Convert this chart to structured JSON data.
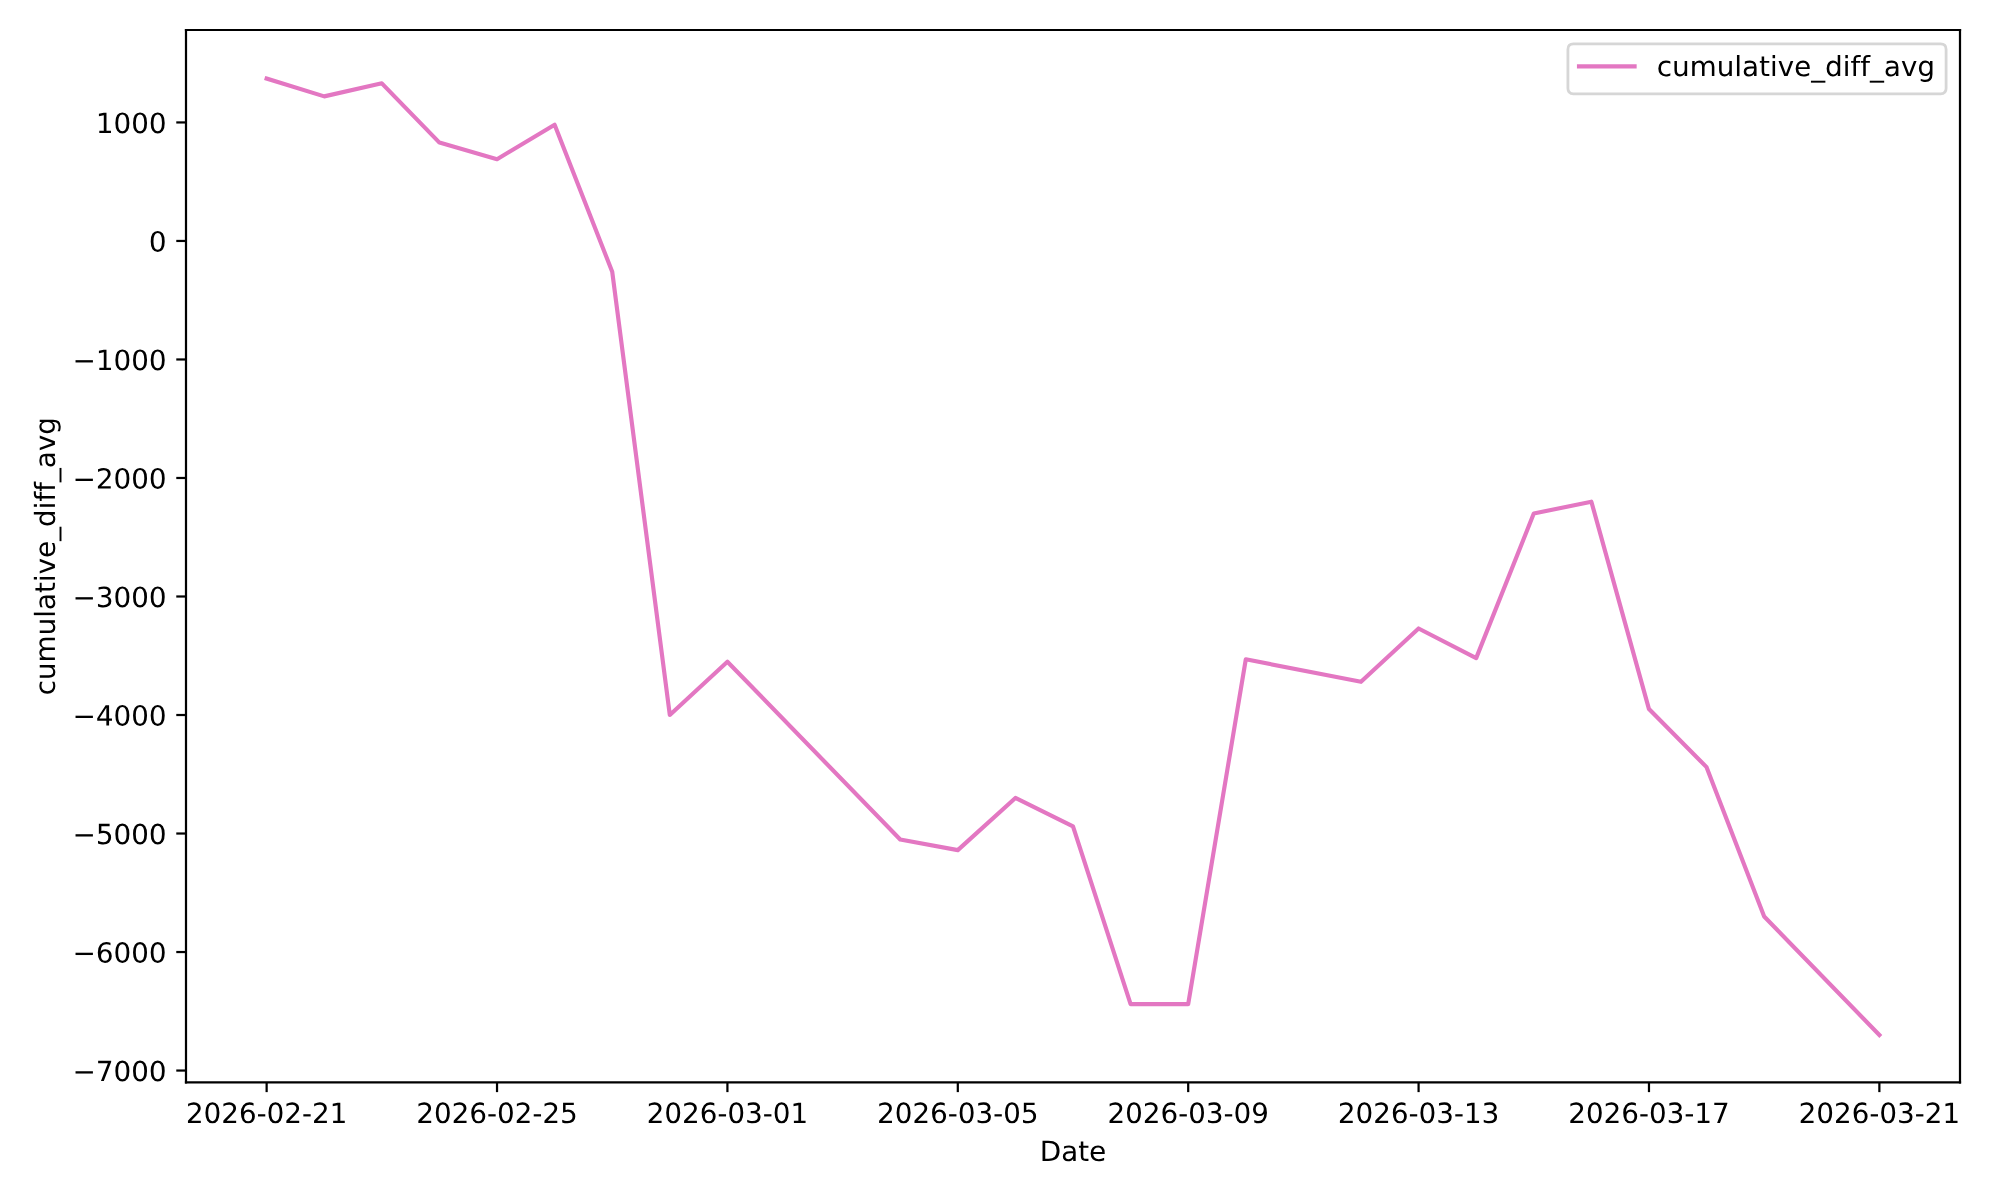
{
  "chart_data": {
    "type": "line",
    "xlabel": "Date",
    "ylabel": "cumulative_diff_avg",
    "series": [
      {
        "name": "cumulative_diff_avg",
        "color": "#e377c2",
        "x": [
          "2026-02-21",
          "2026-02-22",
          "2026-02-23",
          "2026-02-24",
          "2026-02-25",
          "2026-02-26",
          "2026-02-27",
          "2026-02-28",
          "2026-03-01",
          "2026-03-04",
          "2026-03-05",
          "2026-03-06",
          "2026-03-07",
          "2026-03-08",
          "2026-03-09",
          "2026-03-10",
          "2026-03-12",
          "2026-03-13",
          "2026-03-14",
          "2026-03-15",
          "2026-03-16",
          "2026-03-17",
          "2026-03-18",
          "2026-03-19",
          "2026-03-21"
        ],
        "values": [
          1370,
          1220,
          1330,
          830,
          690,
          980,
          -260,
          -4000,
          -3550,
          -5050,
          -5140,
          -4700,
          -4940,
          -6440,
          -6440,
          -3530,
          -3720,
          -3270,
          -3520,
          -2300,
          -2200,
          -3950,
          -4440,
          -5700,
          -6700
        ]
      }
    ],
    "xlim": [
      "2026-02-19T14:24",
      "2026-03-22T09:36"
    ],
    "xticks": [
      "2026-02-21",
      "2026-02-25",
      "2026-03-01",
      "2026-03-05",
      "2026-03-09",
      "2026-03-13",
      "2026-03-17",
      "2026-03-21"
    ],
    "ylim": [
      -7100,
      1780
    ],
    "yticks": [
      {
        "value": -7000,
        "label": "−7000"
      },
      {
        "value": -6000,
        "label": "−6000"
      },
      {
        "value": -5000,
        "label": "−5000"
      },
      {
        "value": -4000,
        "label": "−4000"
      },
      {
        "value": -3000,
        "label": "−3000"
      },
      {
        "value": -2000,
        "label": "−2000"
      },
      {
        "value": -1000,
        "label": "−1000"
      },
      0,
      1000
    ],
    "grid": false,
    "legend": "top right",
    "marker": "none",
    "line_style": "solid"
  }
}
